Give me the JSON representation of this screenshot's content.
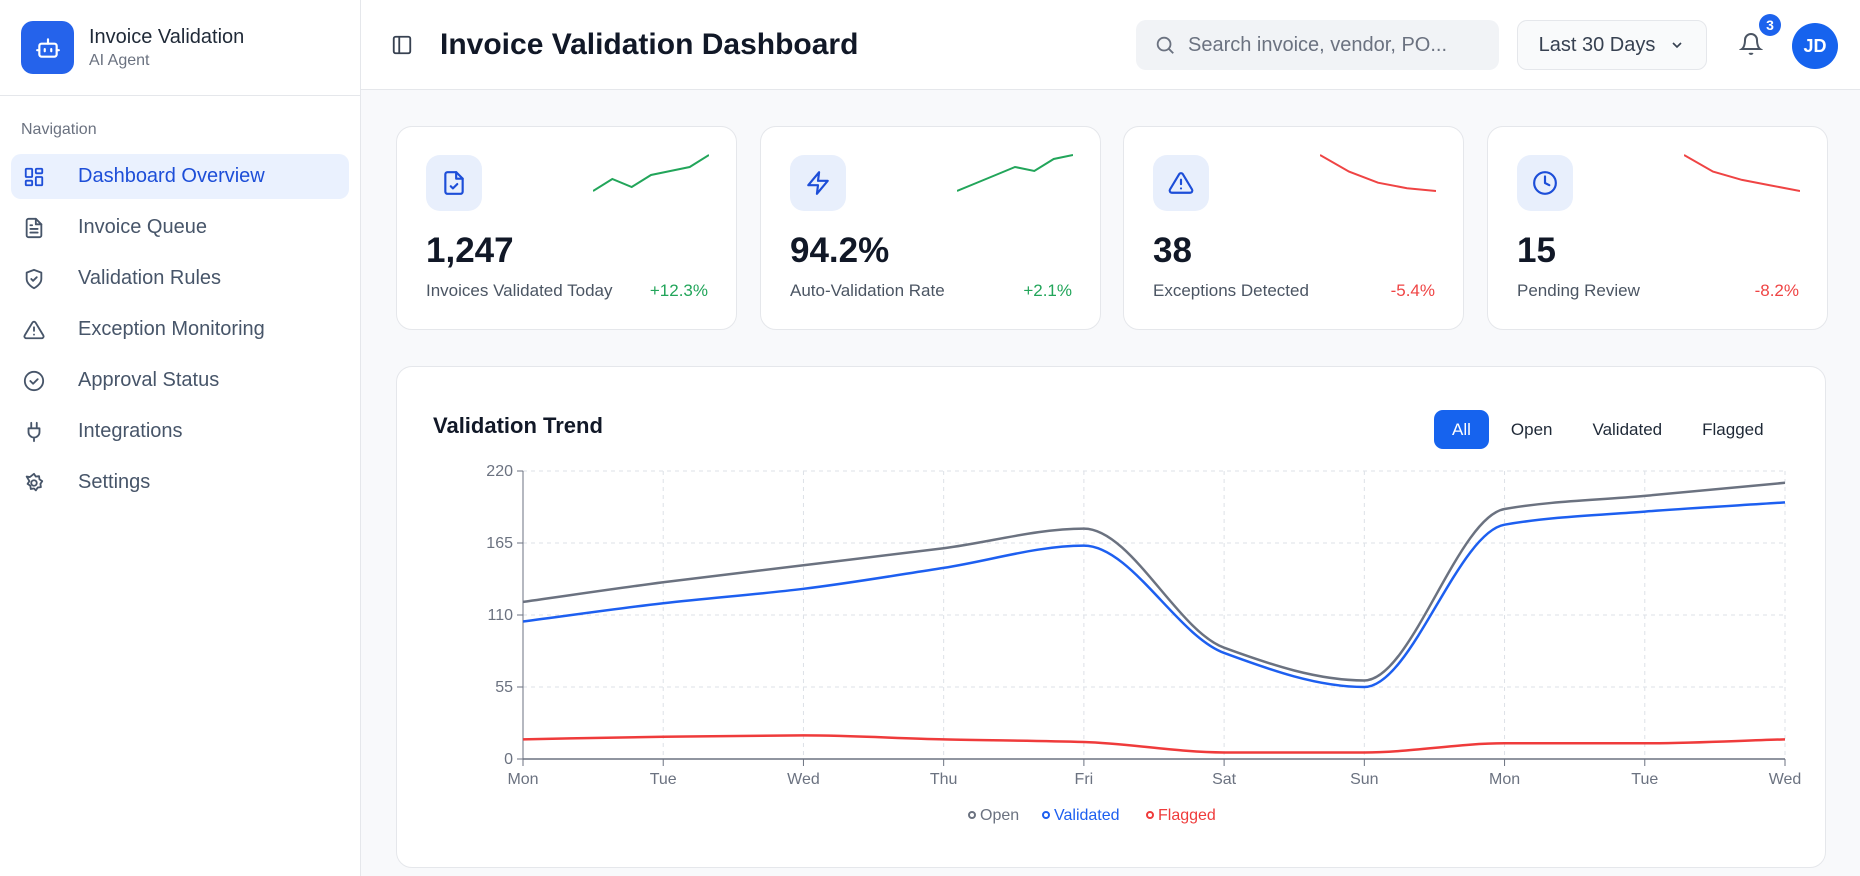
{
  "brand": {
    "title": "Invoice Validation",
    "subtitle": "AI Agent"
  },
  "sidebar": {
    "section_label": "Navigation",
    "items": [
      {
        "label": "Dashboard Overview",
        "icon": "layout-grid-icon",
        "active": true
      },
      {
        "label": "Invoice Queue",
        "icon": "file-text-icon"
      },
      {
        "label": "Validation Rules",
        "icon": "shield-check-icon"
      },
      {
        "label": "Exception Monitoring",
        "icon": "alert-triangle-icon"
      },
      {
        "label": "Approval Status",
        "icon": "check-circle-icon"
      },
      {
        "label": "Integrations",
        "icon": "plug-icon"
      },
      {
        "label": "Settings",
        "icon": "gear-icon"
      }
    ]
  },
  "header": {
    "title": "Invoice Validation Dashboard",
    "search_placeholder": "Search invoice, vendor, PO...",
    "date_range": "Last 30 Days",
    "notification_count": "3",
    "avatar_initials": "JD"
  },
  "colors": {
    "accent": "#1663ee",
    "positive": "#22a55a",
    "negative": "#ef4444",
    "open": "#6b7280",
    "validated": "#1d5ff0",
    "flagged": "#ef3b3b"
  },
  "stats": [
    {
      "value": "1,247",
      "label": "Invoices Validated Today",
      "change": "+12.3%",
      "trend": "up",
      "icon": "file-check-icon",
      "spark": [
        3,
        6,
        4,
        7,
        8,
        9,
        12
      ]
    },
    {
      "value": "94.2%",
      "label": "Auto-Validation Rate",
      "change": "+2.1%",
      "trend": "up",
      "icon": "zap-icon",
      "spark": [
        2,
        4,
        6,
        8,
        7,
        10,
        11
      ]
    },
    {
      "value": "38",
      "label": "Exceptions Detected",
      "change": "-5.4%",
      "trend": "down",
      "icon": "alert-triangle-icon",
      "spark": [
        12,
        9,
        7,
        6,
        5.5
      ]
    },
    {
      "value": "15",
      "label": "Pending Review",
      "change": "-8.2%",
      "trend": "down",
      "icon": "clock-icon",
      "spark": [
        12,
        9,
        7.5,
        6.5,
        5.5
      ]
    }
  ],
  "chart": {
    "title": "Validation Trend",
    "filters": [
      "All",
      "Open",
      "Validated",
      "Flagged"
    ],
    "active_filter": "All"
  },
  "chart_data": {
    "type": "line",
    "title": "Validation Trend",
    "categories": [
      "Mon",
      "Tue",
      "Wed",
      "Thu",
      "Fri",
      "Sat",
      "Sun",
      "Mon",
      "Tue",
      "Wed"
    ],
    "ylim": [
      0,
      220
    ],
    "yticks": [
      0,
      55,
      110,
      165,
      220
    ],
    "grid": true,
    "legend": "bottom",
    "series": [
      {
        "name": "Open",
        "color": "#6b7280",
        "values": [
          120,
          135,
          148,
          161,
          176,
          85,
          60,
          191,
          201,
          211
        ]
      },
      {
        "name": "Validated",
        "color": "#1d5ff0",
        "values": [
          105,
          119,
          130,
          146,
          163,
          81,
          55,
          179,
          189,
          196
        ]
      },
      {
        "name": "Flagged",
        "color": "#ef3b3b",
        "values": [
          15,
          17,
          18,
          15,
          13,
          5,
          5,
          12,
          12,
          15
        ]
      }
    ]
  }
}
